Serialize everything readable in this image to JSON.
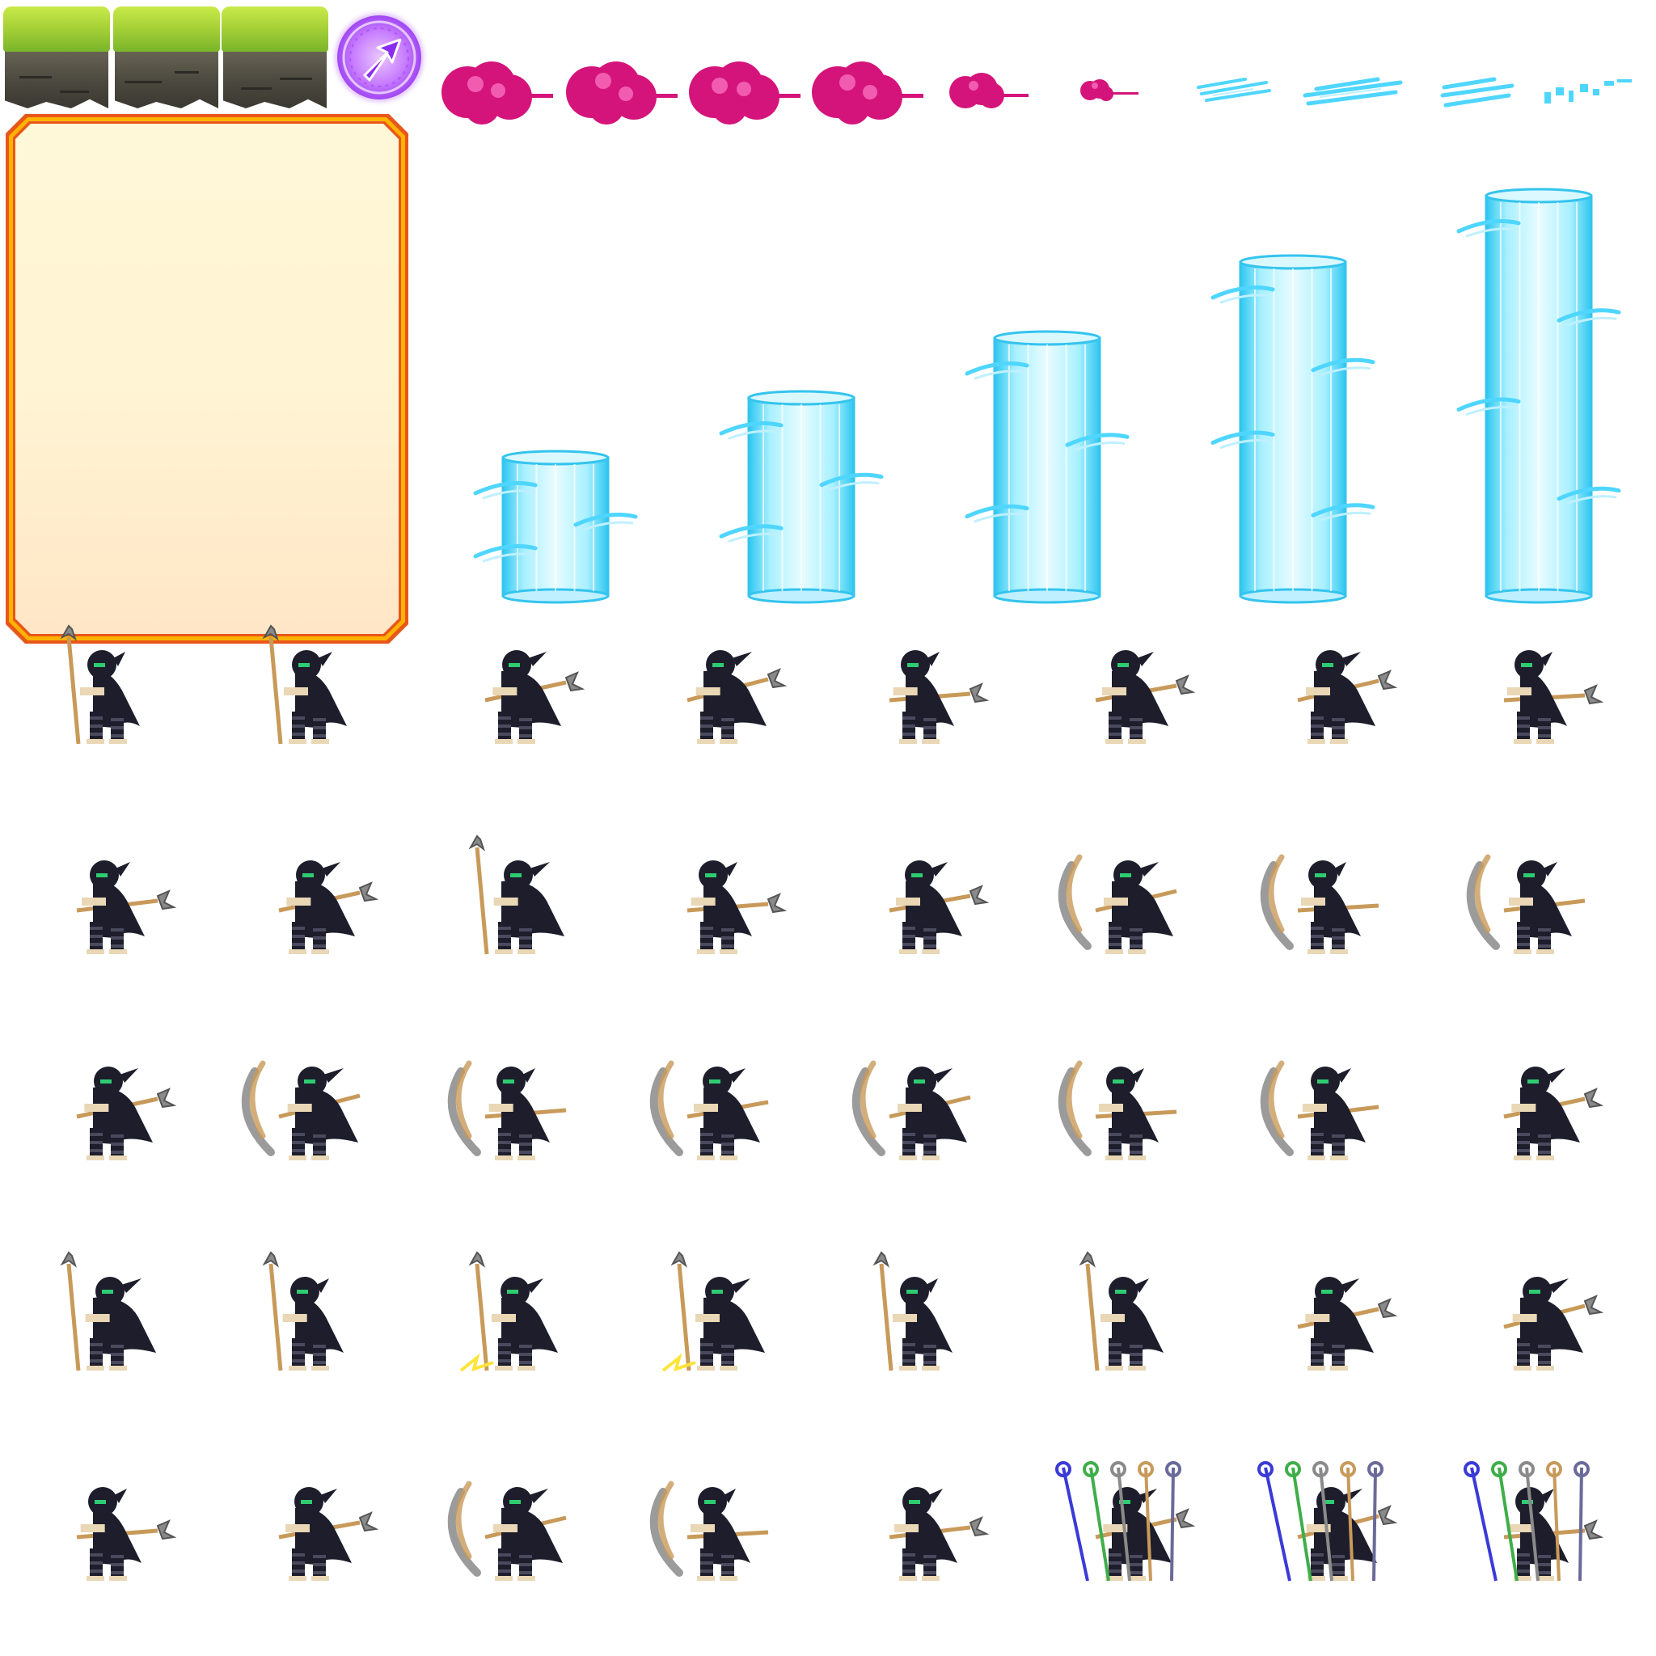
{
  "sheet": {
    "name": "ninja-sprite-sheet",
    "rows": 5,
    "frames_per_row": 8
  },
  "palette": {
    "grass_light": "#c9ea4a",
    "rock_dark": "#3a3830",
    "arrow_purple": "#9a3df0",
    "card_fill": "#fff5d6",
    "card_border_outer": "#e8571a",
    "card_border_inner": "#ffb300",
    "cloud_magenta": "#d4147a",
    "water_cyan": "#4fd6ff",
    "ninja_cloak": "#1d1d2b",
    "staff_wood": "#c89a5a",
    "mace_gray": "#8a8a8a"
  },
  "assets": {
    "tiles": [
      "grass-tile",
      "grass-tile",
      "grass-tile"
    ],
    "arrow_icon": "arrow-up-right-icon",
    "clouds": [
      "cloud-large",
      "cloud-large",
      "cloud-large",
      "cloud-large",
      "cloud-small",
      "cloud-tiny"
    ],
    "water_streaks": [
      "water-streak",
      "water-streak",
      "water-streak",
      "water-streak"
    ],
    "pillar_count": 5
  }
}
